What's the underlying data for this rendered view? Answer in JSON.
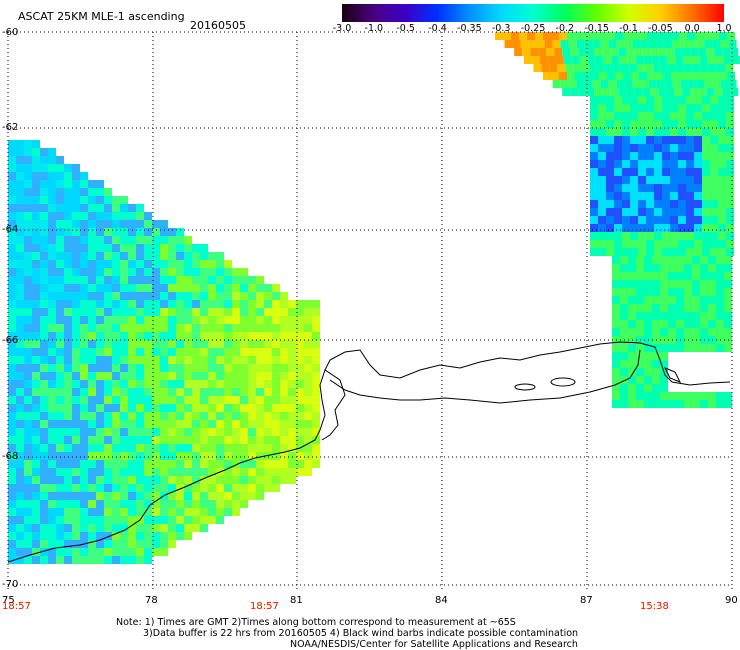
{
  "header": {
    "product_title": "ASCAT 25KM MLE-1 ascending",
    "date": "20160505"
  },
  "colorbar": {
    "tick_labels": [
      "-3.0",
      "-1.0",
      "-0.5",
      "-0.4",
      "-0.35",
      "-0.3",
      "-0.25",
      "-0.2",
      "-0.15",
      "-0.1",
      "-0.05",
      "0.0",
      "1.0"
    ],
    "colors": [
      "#1a0010",
      "#4b0082",
      "#3a00c8",
      "#0030ff",
      "#0090ff",
      "#00d8ff",
      "#00ffd0",
      "#00ff60",
      "#60ff00",
      "#d0ff00",
      "#ffd000",
      "#ff7000",
      "#ff0000"
    ]
  },
  "axes": {
    "lat_labels": [
      "-60",
      "-62",
      "-64",
      "-66",
      "-68",
      "-70"
    ],
    "lon_labels": [
      "75",
      "78",
      "81",
      "84",
      "87",
      "90"
    ]
  },
  "times": [
    "18:57",
    "18:57",
    "15:38"
  ],
  "note": {
    "line1": "Note: 1) Times are GMT 2)Times along bottom correspond to measurement at ~65S",
    "line2": "3)Data buffer is 22 hrs from 20160505 4) Black wind barbs indicate possible contamination",
    "line3": "NOAA/NESDIS/Center for Satellite Applications and Research"
  },
  "map": {
    "lat_range": [
      -70,
      -60
    ],
    "lon_range": [
      75,
      90
    ],
    "colors": {
      "ocean_left": "#00e8e0",
      "ocean_right": "#00d8a0",
      "coast": "#000000"
    }
  }
}
